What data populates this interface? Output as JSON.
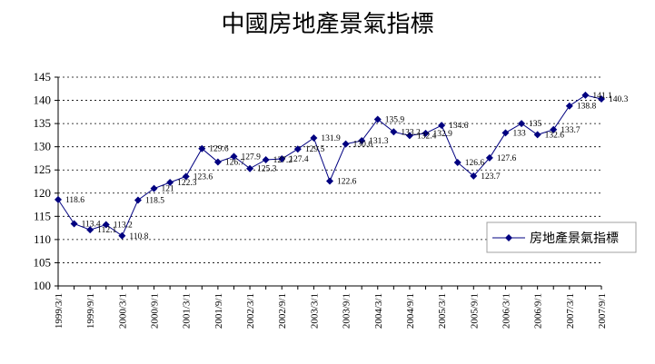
{
  "chart_data": {
    "type": "line",
    "title": "中國房地產景氣指標",
    "xlabel": "",
    "ylabel": "",
    "ylim": [
      100,
      145
    ],
    "yticks": [
      100,
      105,
      110,
      115,
      120,
      125,
      130,
      135,
      140,
      145
    ],
    "xtick_labels": [
      "1999/3/1",
      "1999/9/1",
      "2000/3/1",
      "2000/9/1",
      "2001/3/1",
      "2001/9/1",
      "2002/3/1",
      "2002/9/1",
      "2003/3/1",
      "2003/9/1",
      "2004/3/1",
      "2004/9/1",
      "2005/3/1",
      "2005/9/1",
      "2006/3/1",
      "2006/9/1",
      "2007/3/1",
      "2007/9/1"
    ],
    "legend": {
      "position": "right",
      "label": "房地產景氣指標"
    },
    "color": "#000080",
    "series": [
      {
        "name": "房地產景氣指標",
        "x": [
          "1999/3/1",
          "1999/6/1",
          "1999/9/1",
          "1999/12/1",
          "2000/3/1",
          "2000/6/1",
          "2000/9/1",
          "2000/12/1",
          "2001/3/1",
          "2001/6/1",
          "2001/9/1",
          "2001/12/1",
          "2002/3/1",
          "2002/6/1",
          "2002/9/1",
          "2002/12/1",
          "2003/3/1",
          "2003/6/1",
          "2003/9/1",
          "2003/12/1",
          "2004/3/1",
          "2004/6/1",
          "2004/9/1",
          "2004/12/1",
          "2005/3/1",
          "2005/6/1",
          "2005/9/1",
          "2005/12/1",
          "2006/3/1",
          "2006/6/1",
          "2006/9/1",
          "2006/12/1",
          "2007/3/1",
          "2007/6/1",
          "2007/9/1"
        ],
        "values": [
          118.6,
          113.4,
          112.1,
          113.2,
          110.8,
          118.5,
          121,
          122.3,
          123.6,
          129.6,
          126.7,
          127.9,
          125.3,
          127.2,
          127.4,
          129.5,
          131.9,
          122.6,
          130.6,
          131.3,
          135.9,
          133.2,
          132.4,
          132.9,
          134.6,
          126.6,
          123.7,
          127.6,
          133,
          135,
          132.6,
          133.7,
          138.8,
          141.1,
          140.3
        ],
        "data_labels": [
          "118.6",
          "113.4",
          "112.1",
          "113.2",
          "110.8",
          "118.5",
          "121",
          "122.3",
          "123.6",
          "129.6",
          "126.7",
          "127.9",
          "125.3",
          "127.2",
          "127.4",
          "129.5",
          "131.9",
          "122.6",
          "130.6",
          "131.3",
          "135.9",
          "133.2",
          "132.4",
          "132.9",
          "134.6",
          "126.6",
          "123.7",
          "127.6",
          "133",
          "135",
          "132.6",
          "133.7",
          "138.8",
          "141.1",
          "140.3"
        ]
      }
    ]
  }
}
